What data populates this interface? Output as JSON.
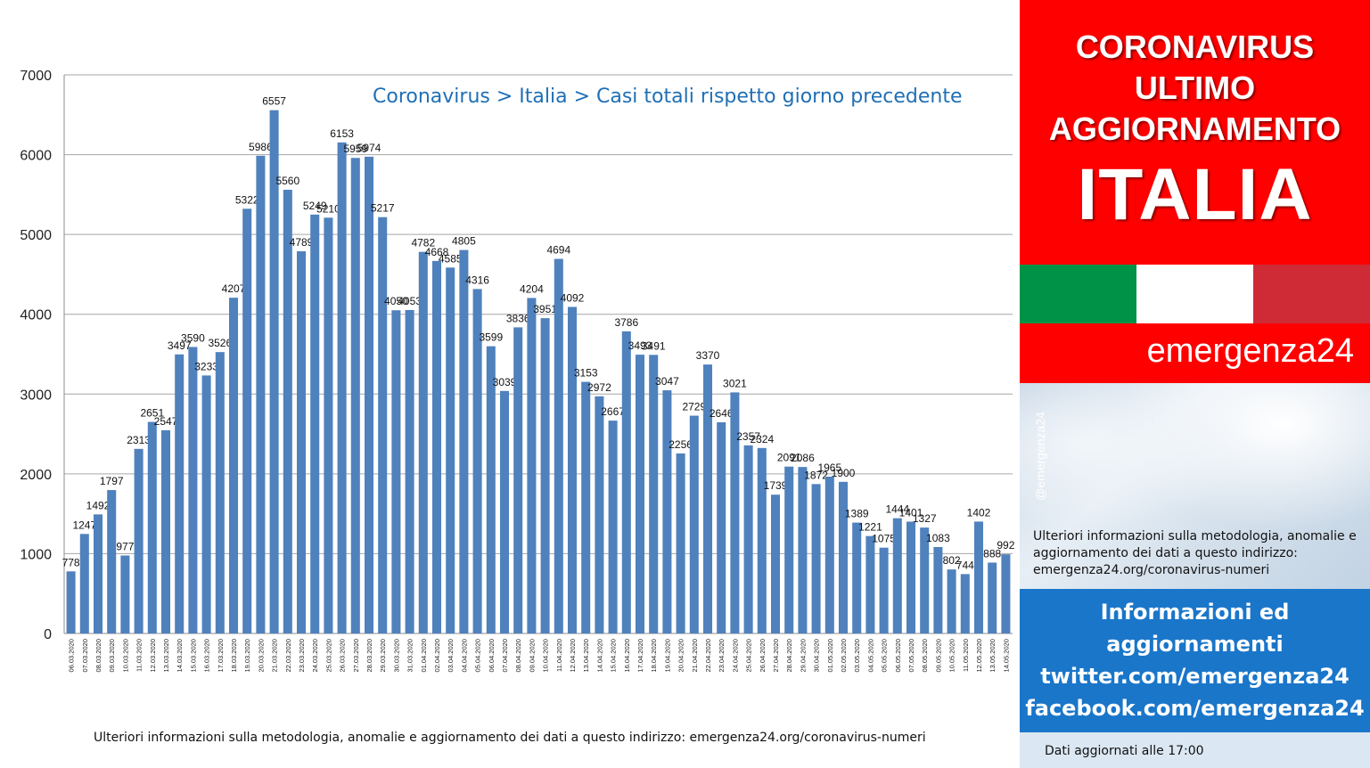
{
  "chart_data": {
    "type": "bar",
    "title": "Coronavirus > Italia > Casi totali rispetto giorno precedente",
    "xlabel": "",
    "ylabel": "",
    "ylim": [
      0,
      7000
    ],
    "yticks": [
      0,
      1000,
      2000,
      3000,
      4000,
      5000,
      6000,
      7000
    ],
    "grid": true,
    "bar_color": "#4f81bd",
    "categories": [
      "06.03.2020",
      "07.03.2020",
      "08.03.2020",
      "09.03.2020",
      "10.03.2020",
      "11.03.2020",
      "12.03.2020",
      "13.03.2020",
      "14.03.2020",
      "15.03.2020",
      "16.03.2020",
      "17.03.2020",
      "18.03.2020",
      "19.03.2020",
      "20.03.2020",
      "21.03.2020",
      "22.03.2020",
      "23.03.2020",
      "24.03.2020",
      "25.03.2020",
      "26.03.2020",
      "27.03.2020",
      "28.03.2020",
      "29.03.2020",
      "30.03.2020",
      "31.03.2020",
      "01.04.2020",
      "02.04.2020",
      "03.04.2020",
      "04.04.2020",
      "05.04.2020",
      "06.04.2020",
      "07.04.2020",
      "08.04.2020",
      "09.04.2020",
      "10.04.2020",
      "11.04.2020",
      "12.04.2020",
      "13.04.2020",
      "14.04.2020",
      "15.04.2020",
      "16.04.2020",
      "17.04.2020",
      "18.04.2020",
      "19.04.2020",
      "20.04.2020",
      "21.04.2020",
      "22.04.2020",
      "23.04.2020",
      "24.04.2020",
      "25.04.2020",
      "26.04.2020",
      "27.04.2020",
      "28.04.2020",
      "29.04.2020",
      "30.04.2020",
      "01.05.2020",
      "02.05.2020",
      "03.05.2020",
      "04.05.2020",
      "05.05.2020",
      "06.05.2020",
      "07.05.2020",
      "08.05.2020",
      "09.05.2020",
      "10.05.2020",
      "11.05.2020",
      "12.05.2020",
      "13.05.2020",
      "14.05.2020"
    ],
    "values": [
      778,
      1247,
      1492,
      1797,
      977,
      2313,
      2651,
      2547,
      3497,
      3590,
      3233,
      3526,
      4207,
      5322,
      5986,
      6557,
      5560,
      4789,
      5249,
      5210,
      6153,
      5959,
      5974,
      5217,
      4050,
      4053,
      4782,
      4668,
      4585,
      4805,
      4316,
      3599,
      3039,
      3836,
      4204,
      3951,
      4694,
      4092,
      3153,
      2972,
      2667,
      3786,
      3493,
      3491,
      3047,
      2256,
      2729,
      3370,
      2646,
      3021,
      2357,
      2324,
      1739,
      2091,
      2086,
      1872,
      1965,
      1900,
      1389,
      1221,
      1075,
      1444,
      1401,
      1327,
      1083,
      802,
      744,
      1402,
      888,
      992
    ]
  },
  "chart_footer": "Ulteriori informazioni sulla metodologia, anomalie e aggiornamento dei dati a questo indirizzo: emergenza24.org/coronavirus-numeri",
  "side": {
    "headline_1": "CORONAVIRUS",
    "headline_2": "ULTIMO",
    "headline_3": "AGGIORNAMENTO",
    "headline_4": "ITALIA",
    "brand": "emergenza24",
    "handle": "@emergenza24",
    "info": "Ulteriori informazioni sulla metodologia, anomalie e aggiornamento dei dati a questo indirizzo: emergenza24.org/coronavirus-numeri",
    "info_1": "Informazioni ed",
    "info_2": "aggiornamenti",
    "twitter": "twitter.com/emergenza24",
    "facebook": "facebook.com/emergenza24",
    "updated": "Dati aggiornati alle 17:00"
  }
}
